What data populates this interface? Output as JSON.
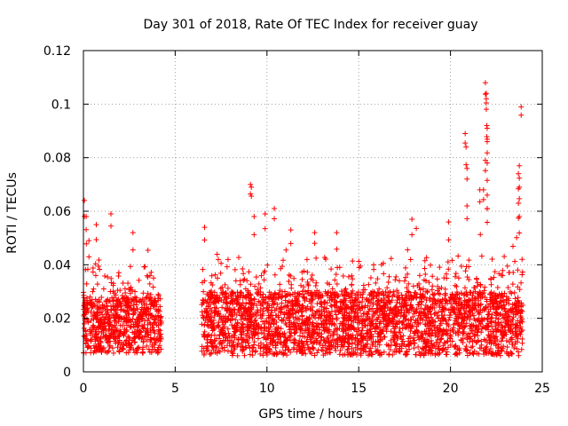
{
  "chart_data": {
    "type": "scatter",
    "title": "Day 301 of 2018, Rate Of TEC Index for receiver guay",
    "xlabel": "GPS time / hours",
    "ylabel": "ROTI / TECUs",
    "xlim": [
      0,
      25
    ],
    "ylim": [
      0,
      0.12
    ],
    "xticks": [
      0,
      5,
      10,
      15,
      20,
      25
    ],
    "yticks": [
      0,
      0.02,
      0.04,
      0.06,
      0.08,
      0.1,
      0.12
    ],
    "xtick_labels": [
      "0",
      "5",
      "10",
      "15",
      "20",
      "25"
    ],
    "ytick_labels": [
      "0",
      "0.02",
      "0.04",
      "0.06",
      "0.08",
      "0.1",
      "0.12"
    ],
    "grid": true,
    "marker": "+",
    "color": "#ff0000",
    "series": [
      {
        "name": "ROTI",
        "segments": [
          {
            "x_start": 0.0,
            "x_end": 4.25,
            "base_low": 0.007,
            "base_high": 0.028
          },
          {
            "x_start": 6.45,
            "x_end": 23.95,
            "base_low": 0.006,
            "base_high": 0.03
          }
        ],
        "notable_points": [
          {
            "x": 0.05,
            "y": 0.064
          },
          {
            "x": 0.15,
            "y": 0.058
          },
          {
            "x": 0.3,
            "y": 0.049
          },
          {
            "x": 0.7,
            "y": 0.055
          },
          {
            "x": 1.5,
            "y": 0.059
          },
          {
            "x": 2.7,
            "y": 0.052
          },
          {
            "x": 6.6,
            "y": 0.054
          },
          {
            "x": 9.1,
            "y": 0.07
          },
          {
            "x": 9.15,
            "y": 0.069
          },
          {
            "x": 9.3,
            "y": 0.058
          },
          {
            "x": 9.9,
            "y": 0.059
          },
          {
            "x": 10.4,
            "y": 0.061
          },
          {
            "x": 11.3,
            "y": 0.053
          },
          {
            "x": 12.6,
            "y": 0.052
          },
          {
            "x": 13.8,
            "y": 0.052
          },
          {
            "x": 17.9,
            "y": 0.057
          },
          {
            "x": 19.9,
            "y": 0.056
          },
          {
            "x": 20.8,
            "y": 0.089
          },
          {
            "x": 20.85,
            "y": 0.084
          },
          {
            "x": 20.9,
            "y": 0.076
          },
          {
            "x": 20.9,
            "y": 0.062
          },
          {
            "x": 21.6,
            "y": 0.068
          },
          {
            "x": 21.8,
            "y": 0.068
          },
          {
            "x": 21.9,
            "y": 0.108
          },
          {
            "x": 21.95,
            "y": 0.104
          },
          {
            "x": 21.95,
            "y": 0.102
          },
          {
            "x": 21.98,
            "y": 0.092
          },
          {
            "x": 22.0,
            "y": 0.091
          },
          {
            "x": 22.0,
            "y": 0.086
          },
          {
            "x": 21.9,
            "y": 0.079
          },
          {
            "x": 22.0,
            "y": 0.078
          },
          {
            "x": 22.0,
            "y": 0.066
          },
          {
            "x": 22.0,
            "y": 0.061
          },
          {
            "x": 23.75,
            "y": 0.077
          },
          {
            "x": 23.7,
            "y": 0.074
          },
          {
            "x": 23.75,
            "y": 0.069
          },
          {
            "x": 23.7,
            "y": 0.063
          },
          {
            "x": 23.75,
            "y": 0.058
          },
          {
            "x": 23.85,
            "y": 0.099
          },
          {
            "x": 23.9,
            "y": 0.042
          }
        ]
      }
    ]
  }
}
